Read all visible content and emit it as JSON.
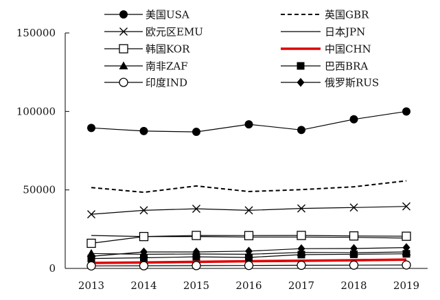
{
  "chart_data": {
    "type": "line",
    "title": "",
    "xlabel": "",
    "ylabel": "",
    "x": [
      2013,
      2014,
      2015,
      2016,
      2017,
      2018,
      2019
    ],
    "ylim": [
      0,
      150000
    ],
    "yticks": [
      0,
      50000,
      100000,
      150000
    ],
    "grid": false,
    "legend_placement": "top, two columns",
    "series": [
      {
        "name": "美国USA",
        "values": [
          89500,
          87500,
          87000,
          91800,
          88200,
          95000,
          100000
        ],
        "color": "#000000",
        "style": "solid",
        "marker": "filled-circle"
      },
      {
        "name": "英国GBR",
        "values": [
          51500,
          48500,
          52500,
          49000,
          50200,
          52000,
          55800
        ],
        "color": "#000000",
        "style": "dashed",
        "marker": "none"
      },
      {
        "name": "欧元区EMU",
        "values": [
          34500,
          37000,
          38000,
          37000,
          38200,
          38800,
          39500
        ],
        "color": "#000000",
        "style": "solid",
        "marker": "x"
      },
      {
        "name": "日本JPN",
        "values": [
          21000,
          20300,
          20300,
          20000,
          20000,
          19800,
          19300
        ],
        "color": "#000000",
        "style": "solid",
        "marker": "none"
      },
      {
        "name": "韩国KOR",
        "values": [
          16000,
          20300,
          21000,
          20900,
          21000,
          20700,
          20500
        ],
        "color": "#000000",
        "style": "solid",
        "marker": "open-square"
      },
      {
        "name": "中国CHN",
        "values": [
          3500,
          3800,
          4200,
          4600,
          4900,
          5200,
          5600
        ],
        "color": "#e00000",
        "style": "solid-thick",
        "marker": "none"
      },
      {
        "name": "南非ZAF",
        "values": [
          9500,
          9000,
          9200,
          9000,
          10200,
          10000,
          10500
        ],
        "color": "#000000",
        "style": "solid",
        "marker": "filled-triangle"
      },
      {
        "name": "巴西BRA",
        "values": [
          6300,
          6800,
          7400,
          7000,
          8800,
          9000,
          9300
        ],
        "color": "#000000",
        "style": "solid",
        "marker": "filled-square"
      },
      {
        "name": "印度IND",
        "values": [
          1600,
          1700,
          1800,
          1900,
          2000,
          2100,
          2200
        ],
        "color": "#000000",
        "style": "solid",
        "marker": "open-circle"
      },
      {
        "name": "俄罗斯RUS",
        "values": [
          7700,
          10500,
          10500,
          11000,
          12600,
          12700,
          13300
        ],
        "color": "#000000",
        "style": "solid",
        "marker": "filled-diamond"
      }
    ]
  }
}
